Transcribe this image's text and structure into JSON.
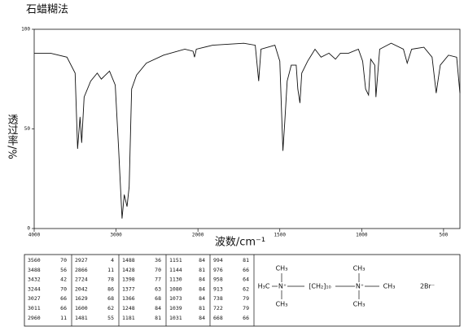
{
  "chart_data": {
    "type": "line",
    "title": "石蜡糊法",
    "x_label": "波数/cm⁻¹",
    "y_label": "透过率/%",
    "color": "#111111",
    "xlim": [
      4000,
      400
    ],
    "xticks": [
      4000,
      3000,
      2000,
      1500,
      1000,
      500
    ],
    "ylim": [
      0,
      100
    ],
    "yticks": [
      0,
      50,
      100
    ],
    "x": [
      4000,
      3800,
      3600,
      3500,
      3470,
      3440,
      3420,
      3390,
      3310,
      3230,
      3180,
      3080,
      3010,
      2970,
      2927,
      2900,
      2866,
      2840,
      2810,
      2750,
      2630,
      2420,
      2160,
      2060,
      2042,
      2020,
      1910,
      1720,
      1650,
      1629,
      1615,
      1530,
      1500,
      1481,
      1470,
      1455,
      1430,
      1400,
      1390,
      1377,
      1366,
      1330,
      1285,
      1248,
      1200,
      1160,
      1130,
      1080,
      1020,
      994,
      976,
      958,
      945,
      920,
      913,
      890,
      820,
      745,
      722,
      695,
      620,
      570,
      545,
      520,
      470,
      420,
      400
    ],
    "values": [
      88,
      88,
      86,
      78,
      40,
      56,
      43,
      66,
      74,
      78,
      75,
      79,
      72,
      41,
      5,
      17,
      11,
      21,
      70,
      77,
      83,
      87,
      90,
      89,
      86,
      90,
      92,
      93,
      92,
      74,
      90,
      92,
      84,
      39,
      53,
      74,
      82,
      82,
      70,
      63,
      78,
      84,
      90,
      86,
      88,
      85,
      88,
      88,
      90,
      84,
      70,
      67,
      85,
      82,
      66,
      90,
      93,
      90,
      83,
      90,
      91,
      86,
      68,
      82,
      87,
      86,
      68
    ]
  },
  "peak_table": [
    [
      [
        3560,
        70
      ],
      [
        2927,
        4
      ],
      [
        1488,
        36
      ],
      [
        1151,
        84
      ],
      [
        994,
        81
      ]
    ],
    [
      [
        3488,
        56
      ],
      [
        2866,
        11
      ],
      [
        1428,
        70
      ],
      [
        1144,
        81
      ],
      [
        976,
        66
      ]
    ],
    [
      [
        3432,
        42
      ],
      [
        2724,
        78
      ],
      [
        1398,
        77
      ],
      [
        1130,
        84
      ],
      [
        958,
        64
      ]
    ],
    [
      [
        3244,
        70
      ],
      [
        2042,
        86
      ],
      [
        1377,
        63
      ],
      [
        1080,
        84
      ],
      [
        913,
        62
      ]
    ],
    [
      [
        3027,
        66
      ],
      [
        1629,
        68
      ],
      [
        1366,
        68
      ],
      [
        1073,
        84
      ],
      [
        738,
        79
      ]
    ],
    [
      [
        3011,
        66
      ],
      [
        1600,
        62
      ],
      [
        1248,
        84
      ],
      [
        1039,
        81
      ],
      [
        722,
        79
      ]
    ],
    [
      [
        2960,
        11
      ],
      [
        1481,
        55
      ],
      [
        1181,
        81
      ],
      [
        1031,
        84
      ],
      [
        668,
        66
      ]
    ]
  ],
  "structure": {
    "left_methyl_top": "CH₃",
    "left_methyl_end": "H₃C",
    "left_nitrogen": "N⁺",
    "left_methyl_bottom": "CH₃",
    "chain": "[CH₂]₁₀",
    "right_methyl_top": "CH₃",
    "right_nitrogen": "N⁺",
    "right_methyl_end": "CH₃",
    "right_methyl_bottom": "CH₃",
    "counter_ion": "2Br⁻"
  }
}
